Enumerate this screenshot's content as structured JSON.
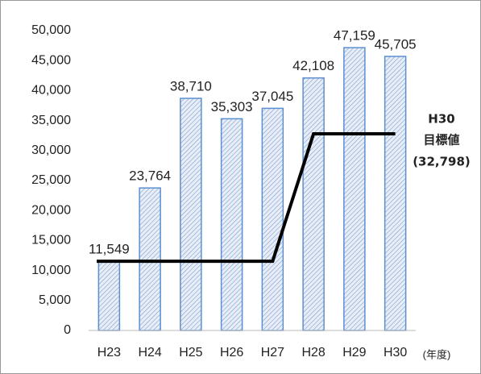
{
  "chart_data": {
    "type": "bar",
    "categories": [
      "H23",
      "H24",
      "H25",
      "H26",
      "H27",
      "H28",
      "H29",
      "H30"
    ],
    "x_unit": "(年度)",
    "values": [
      11549,
      23764,
      38710,
      35303,
      37045,
      42108,
      47159,
      45705
    ],
    "value_labels": [
      "11,549",
      "23,764",
      "38,710",
      "35,303",
      "37,045",
      "42,108",
      "47,159",
      "45,705"
    ],
    "color": "#5b8fd0",
    "target": {
      "values": [
        11549,
        11549,
        11549,
        11549,
        11549,
        32798,
        32798,
        32798
      ],
      "color": "#000000"
    },
    "annotation": [
      "H30",
      "目標値",
      "(32,798)"
    ],
    "ylim": [
      0,
      50000
    ],
    "yticks": [
      0,
      {
        "value": 5000,
        "label": "5,000"
      },
      {
        "value": 10000,
        "label": "10,000"
      },
      {
        "value": 15000,
        "label": "15,000"
      },
      {
        "value": 20000,
        "label": "20,000"
      },
      {
        "value": 25000,
        "label": "25,000"
      },
      {
        "value": 30000,
        "label": "30,000"
      },
      {
        "value": 35000,
        "label": "35,000"
      },
      {
        "value": 40000,
        "label": "40,000"
      },
      {
        "value": 45000,
        "label": "45,000"
      },
      {
        "value": 50000,
        "label": "50,000"
      }
    ],
    "grid": false
  }
}
